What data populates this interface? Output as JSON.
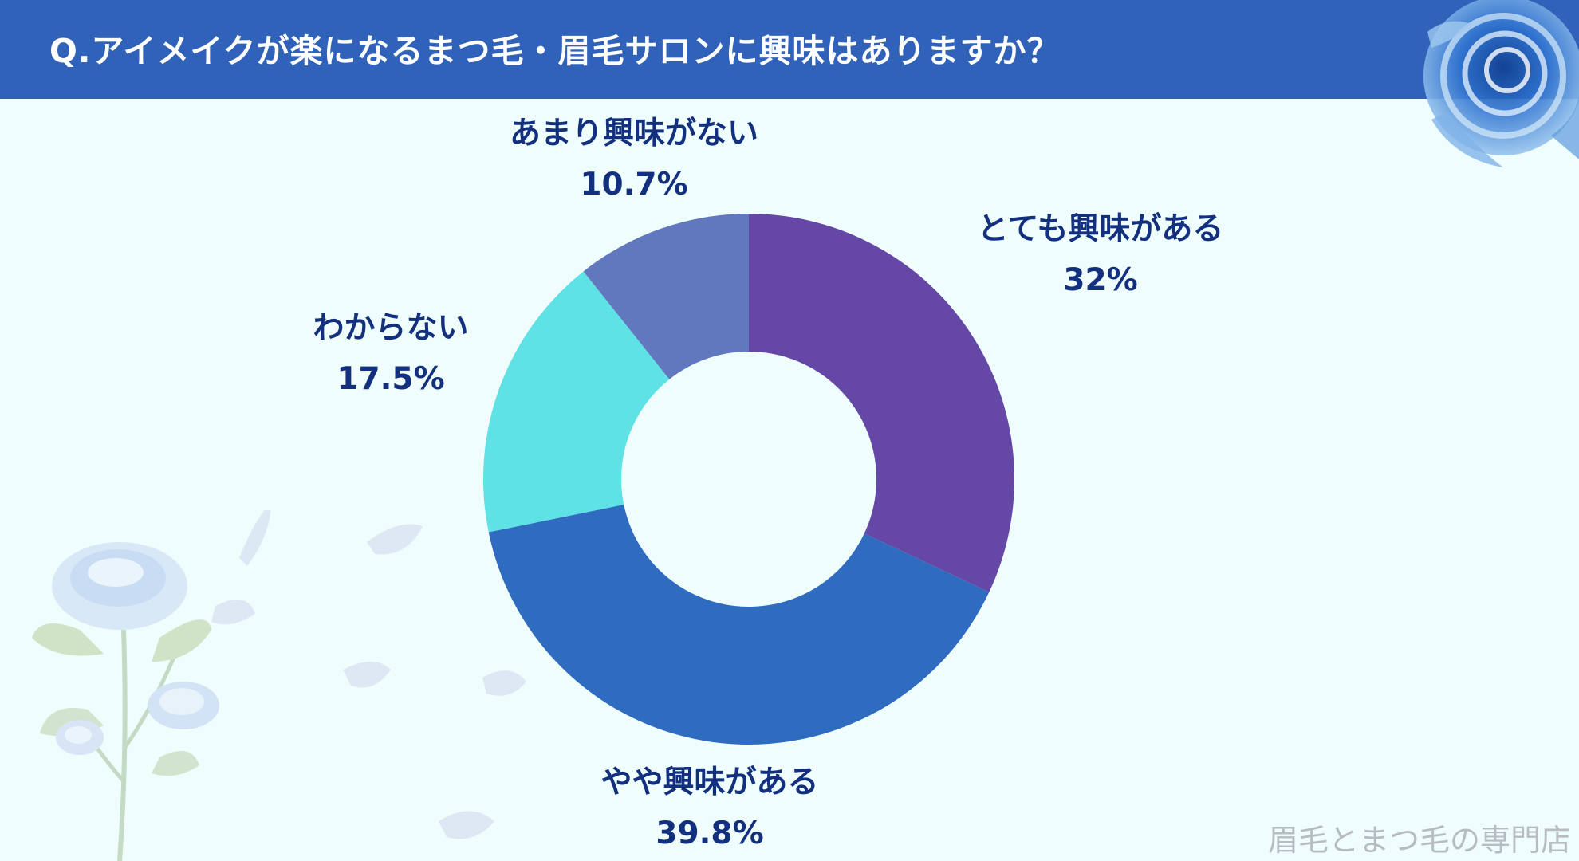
{
  "header": {
    "title": "Q.アイメイクが楽になるまつ毛・眉毛サロンに興味はありますか？"
  },
  "chart_data": {
    "type": "pie",
    "title": "Q.アイメイクが楽になるまつ毛・眉毛サロンに興味はありますか？",
    "donut": true,
    "slices": [
      {
        "label": "とても興味がある",
        "value": 32,
        "value_label": "32%",
        "color": "#6547a6"
      },
      {
        "label": "やや興味がある",
        "value": 39.8,
        "value_label": "39.8%",
        "color": "#2f6bbf"
      },
      {
        "label": "わからない",
        "value": 17.5,
        "value_label": "17.5%",
        "color": "#5ee2e6"
      },
      {
        "label": "あまり興味がない",
        "value": 10.7,
        "value_label": "10.7%",
        "color": "#6178bf"
      }
    ]
  },
  "footer": {
    "text": "眉毛とまつ毛の専門店"
  }
}
